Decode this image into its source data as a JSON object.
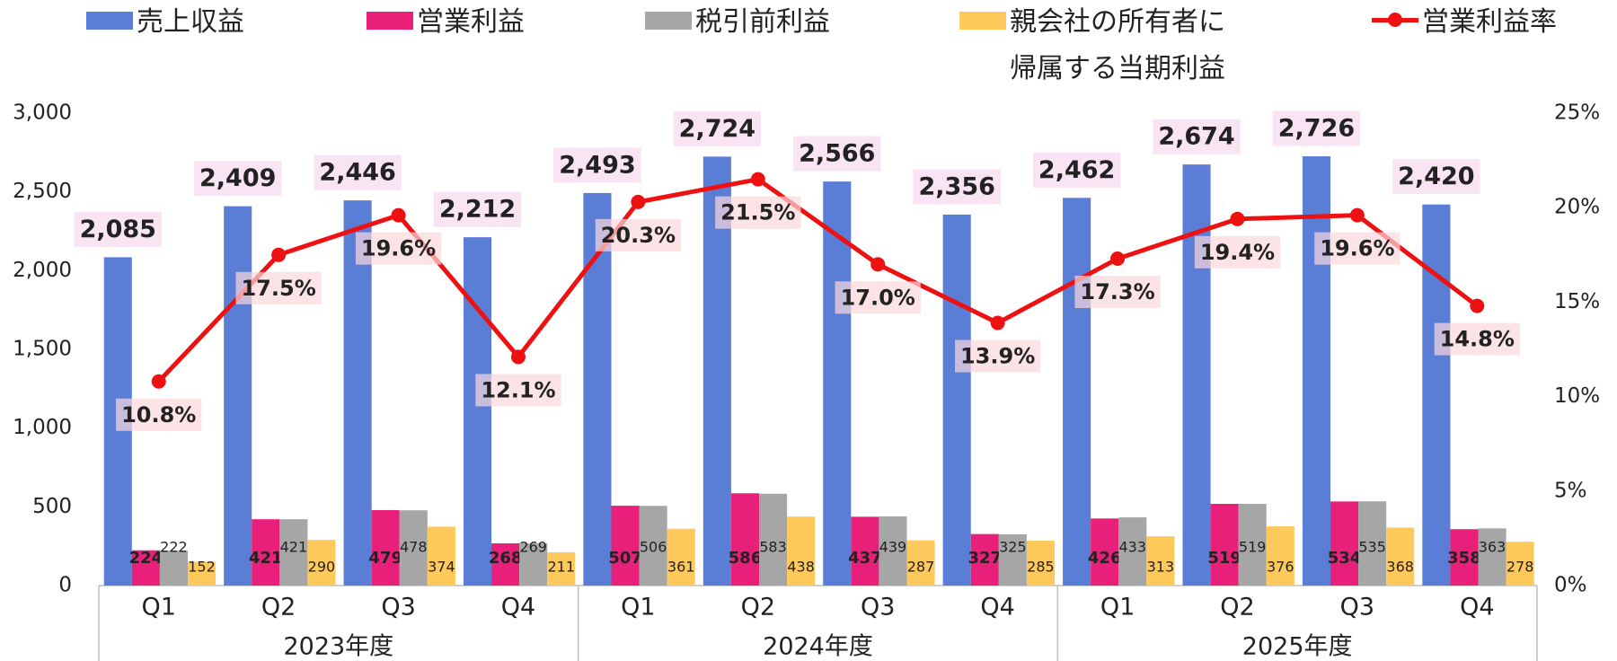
{
  "chart_data": {
    "type": "bar",
    "legend": "top",
    "categories": [
      "Q1",
      "Q2",
      "Q3",
      "Q4",
      "Q1",
      "Q2",
      "Q3",
      "Q4",
      "Q1",
      "Q2",
      "Q3",
      "Q4"
    ],
    "groups": [
      "2023年度",
      "2024年度",
      "2025年度"
    ],
    "ylim": [
      0,
      3000
    ],
    "yticks": [
      0,
      500,
      {
        "value": 1000,
        "label": "1,000"
      },
      {
        "value": 1500,
        "label": "1,500"
      },
      {
        "value": 2000,
        "label": "2,000"
      },
      {
        "value": 2500,
        "label": "2,500"
      },
      {
        "value": 3000,
        "label": "3,000"
      }
    ],
    "y2lim": [
      0,
      25
    ],
    "y2ticks": [
      {
        "value": 0,
        "label": "0%"
      },
      {
        "value": 5,
        "label": "5%"
      },
      {
        "value": 10,
        "label": "10%"
      },
      {
        "value": 15,
        "label": "15%"
      },
      {
        "value": 20,
        "label": "20%"
      },
      {
        "value": 25,
        "label": "25%"
      }
    ],
    "series": [
      {
        "name": "売上収益",
        "color": "#5a7ed6",
        "values": [
          2085,
          2409,
          2446,
          2212,
          2493,
          2724,
          2566,
          2356,
          2462,
          2674,
          2726,
          2420
        ],
        "value_labels": [
          "2,085",
          "2,409",
          "2,446",
          "2,212",
          "2,493",
          "2,724",
          "2,566",
          "2,356",
          "2,462",
          "2,674",
          "2,726",
          "2,420"
        ]
      },
      {
        "name": "営業利益",
        "color": "#e8207a",
        "values": [
          224,
          421,
          479,
          268,
          507,
          586,
          437,
          327,
          426,
          519,
          534,
          358
        ]
      },
      {
        "name": "税引前利益",
        "color": "#a6a6a6",
        "values": [
          222,
          421,
          478,
          269,
          506,
          583,
          439,
          325,
          433,
          519,
          535,
          363
        ]
      },
      {
        "name": "親会社の所有者に帰属する当期利益",
        "color": "#ffc95c",
        "values": [
          152,
          290,
          374,
          211,
          361,
          438,
          287,
          285,
          313,
          376,
          368,
          278
        ]
      },
      {
        "name": "営業利益率",
        "color": "#ee1111",
        "type": "line",
        "axis": "y2",
        "values": [
          10.8,
          17.5,
          19.6,
          12.1,
          20.3,
          21.5,
          17.0,
          13.9,
          17.3,
          19.4,
          19.6,
          14.8
        ],
        "value_labels": [
          "10.8%",
          "17.5%",
          "19.6%",
          "12.1%",
          "20.3%",
          "21.5%",
          "17.0%",
          "13.9%",
          "17.3%",
          "19.4%",
          "19.6%",
          "14.8%"
        ]
      }
    ]
  }
}
